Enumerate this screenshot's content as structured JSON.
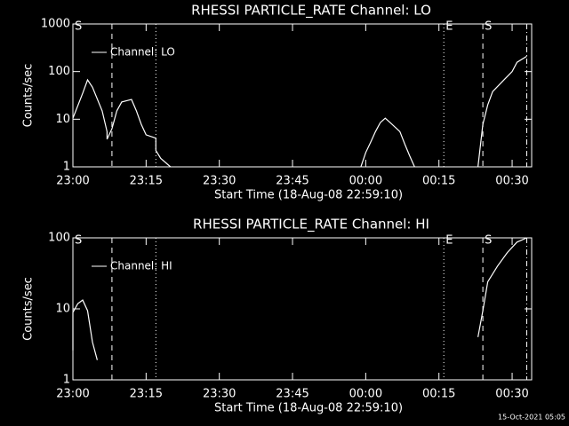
{
  "chart_data": [
    {
      "type": "line",
      "title": "RHESSI PARTICLE_RATE Channel: LO",
      "x_label": "Start Time (18-Aug-08 22:59:10)",
      "y_label": "Counts/sec",
      "log_y": true,
      "ylim": [
        1,
        1000
      ],
      "yticks": [
        1,
        10,
        100,
        1000
      ],
      "xlim": [
        "23:00",
        "00:34"
      ],
      "xticks": [
        "23:00",
        "23:15",
        "23:30",
        "23:45",
        "00:00",
        "00:15",
        "00:30"
      ],
      "events": [
        {
          "x": "23:00",
          "label": "S"
        },
        {
          "x": "23:08",
          "style": "dashed"
        },
        {
          "x": "23:17",
          "style": "dotted"
        },
        {
          "x": "00:16",
          "style": "dotted",
          "label": "E"
        },
        {
          "x": "00:24",
          "style": "dashed",
          "label": "S"
        },
        {
          "x": "00:33",
          "style": "dashdot"
        }
      ],
      "x": [
        "23:00",
        "23:02",
        "23:03",
        "23:04",
        "23:06",
        "23:07",
        "23:07",
        "23:08",
        "23:09",
        "23:10",
        "23:12",
        "23:13",
        "23:14",
        "23:15",
        "23:17",
        "23:17",
        "23:18",
        "23:20",
        null,
        "23:59",
        "00:00",
        "00:01",
        "00:02",
        "00:03",
        "00:04",
        "00:05",
        "00:07",
        "00:08",
        "00:09",
        "00:10",
        null,
        "00:23",
        "00:24",
        "00:25",
        "00:26",
        "00:28",
        "00:30",
        "00:31",
        "00:33"
      ],
      "series": [
        {
          "name": "Channel: LO",
          "color": "#ffffff",
          "values": [
            10.5,
            35,
            67,
            47,
            15,
            5.5,
            3.8,
            6.3,
            15,
            23,
            26,
            15,
            7.8,
            4.7,
            4,
            2.2,
            1.5,
            1,
            null,
            1,
            2,
            3.3,
            5.5,
            8.5,
            10.5,
            8.5,
            5.5,
            3,
            1.7,
            1,
            null,
            1,
            7.8,
            20,
            38,
            62,
            100,
            157,
            210
          ]
        }
      ]
    },
    {
      "type": "line",
      "title": "RHESSI PARTICLE_RATE Channel: HI",
      "x_label": "Start Time (18-Aug-08 22:59:10)",
      "y_label": "Counts/sec",
      "log_y": true,
      "ylim": [
        1,
        100
      ],
      "yticks": [
        1,
        10,
        100
      ],
      "xlim": [
        "23:00",
        "00:34"
      ],
      "xticks": [
        "23:00",
        "23:15",
        "23:30",
        "23:45",
        "00:00",
        "00:15",
        "00:30"
      ],
      "events": [
        {
          "x": "23:00",
          "label": "S"
        },
        {
          "x": "23:08",
          "style": "dashed"
        },
        {
          "x": "23:17",
          "style": "dotted"
        },
        {
          "x": "00:16",
          "style": "dotted",
          "label": "E"
        },
        {
          "x": "00:24",
          "style": "dashed",
          "label": "S"
        },
        {
          "x": "00:33",
          "style": "dashdot"
        }
      ],
      "x": [
        "23:00",
        "23:00",
        "23:01",
        "23:02",
        "23:03",
        "23:04",
        "23:05",
        null,
        "00:23",
        "00:24",
        "00:25",
        "00:27",
        "00:29",
        "00:31",
        "00:33"
      ],
      "series": [
        {
          "name": "Channel: HI",
          "color": "#ffffff",
          "values": [
            2.6,
            8.9,
            11.8,
            13.3,
            9.4,
            3.4,
            1.9,
            null,
            4,
            9.4,
            24,
            40,
            62,
            87,
            100
          ]
        }
      ]
    }
  ],
  "timestamp": "15-Oct-2021 05:05"
}
